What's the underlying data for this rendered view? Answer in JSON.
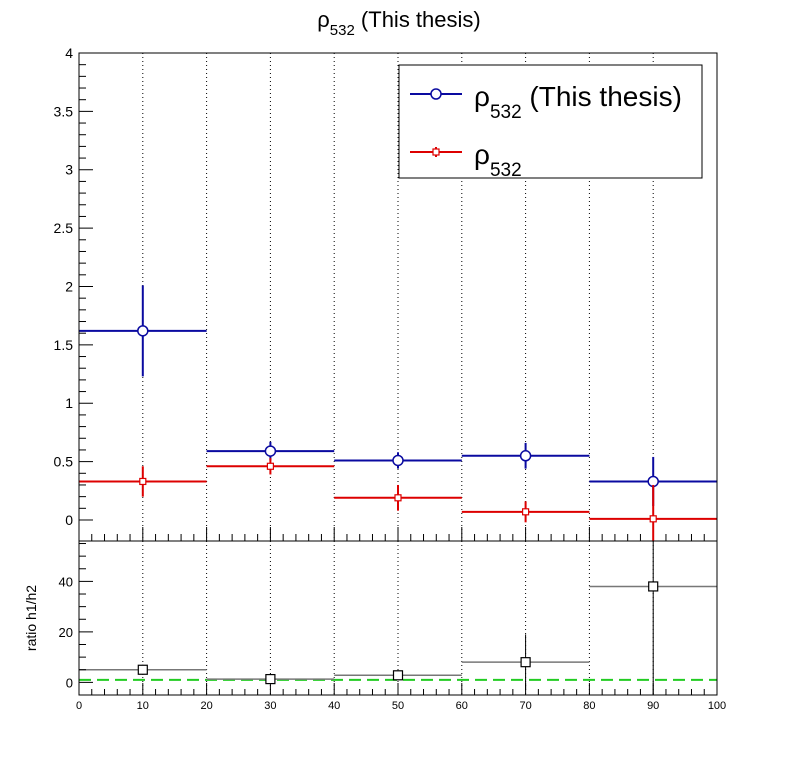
{
  "title": {
    "main": "ρ",
    "sub": "532",
    "rest": " (This thesis)"
  },
  "legend": [
    {
      "symbol": "ρ",
      "sub": "532",
      "rest": " (This thesis)",
      "color": "#0a0aa0",
      "marker": "open-circle"
    },
    {
      "symbol": "ρ",
      "sub": "532",
      "rest": "",
      "color": "#dd0000",
      "marker": "small-open-square"
    }
  ],
  "colors": {
    "blue": "#0a0aa0",
    "red": "#dd0000",
    "ratio": "#000000",
    "bin_line": "#777777",
    "ref_line": "#22cc22"
  },
  "chart_data": [
    {
      "type": "scatter",
      "panel": "top",
      "x": [
        10,
        30,
        50,
        70,
        90
      ],
      "bin_edges": [
        0,
        20,
        40,
        60,
        80,
        100
      ],
      "xlim": [
        0,
        100
      ],
      "ylim": [
        -0.18,
        4
      ],
      "yticks": [
        "0",
        "0.5",
        "1",
        "1.5",
        "2",
        "2.5",
        "3",
        "3.5",
        "4"
      ],
      "grid_x": true,
      "legend_position": "top-right",
      "series": [
        {
          "name_symbol": "ρ",
          "name_sub": "532",
          "name_rest": " (This thesis)",
          "color": "#0a0aa0",
          "values": [
            1.62,
            0.59,
            0.51,
            0.55,
            0.33
          ],
          "errors": [
            0.39,
            0.08,
            0.07,
            0.11,
            0.21
          ]
        },
        {
          "name_symbol": "ρ",
          "name_sub": "532",
          "name_rest": "",
          "color": "#dd0000",
          "values": [
            0.33,
            0.46,
            0.19,
            0.07,
            0.01
          ],
          "errors": [
            0.13,
            0.07,
            0.11,
            0.09,
            0.29
          ]
        }
      ]
    },
    {
      "type": "scatter",
      "panel": "ratio",
      "ylabel": "ratio h1/h2",
      "x": [
        10,
        30,
        50,
        70,
        90
      ],
      "bin_edges": [
        0,
        20,
        40,
        60,
        80,
        100
      ],
      "xlim": [
        0,
        100
      ],
      "ylim": [
        -5,
        56
      ],
      "yticks": [
        "0",
        "20",
        "40"
      ],
      "xticks": [
        "0",
        "10",
        "20",
        "30",
        "40",
        "50",
        "60",
        "70",
        "80",
        "90",
        "100"
      ],
      "grid_x": true,
      "values": [
        5,
        1.3,
        2.8,
        8,
        38
      ],
      "errors": [
        2,
        0.5,
        2,
        11,
        60
      ],
      "reference_line": 1
    }
  ]
}
